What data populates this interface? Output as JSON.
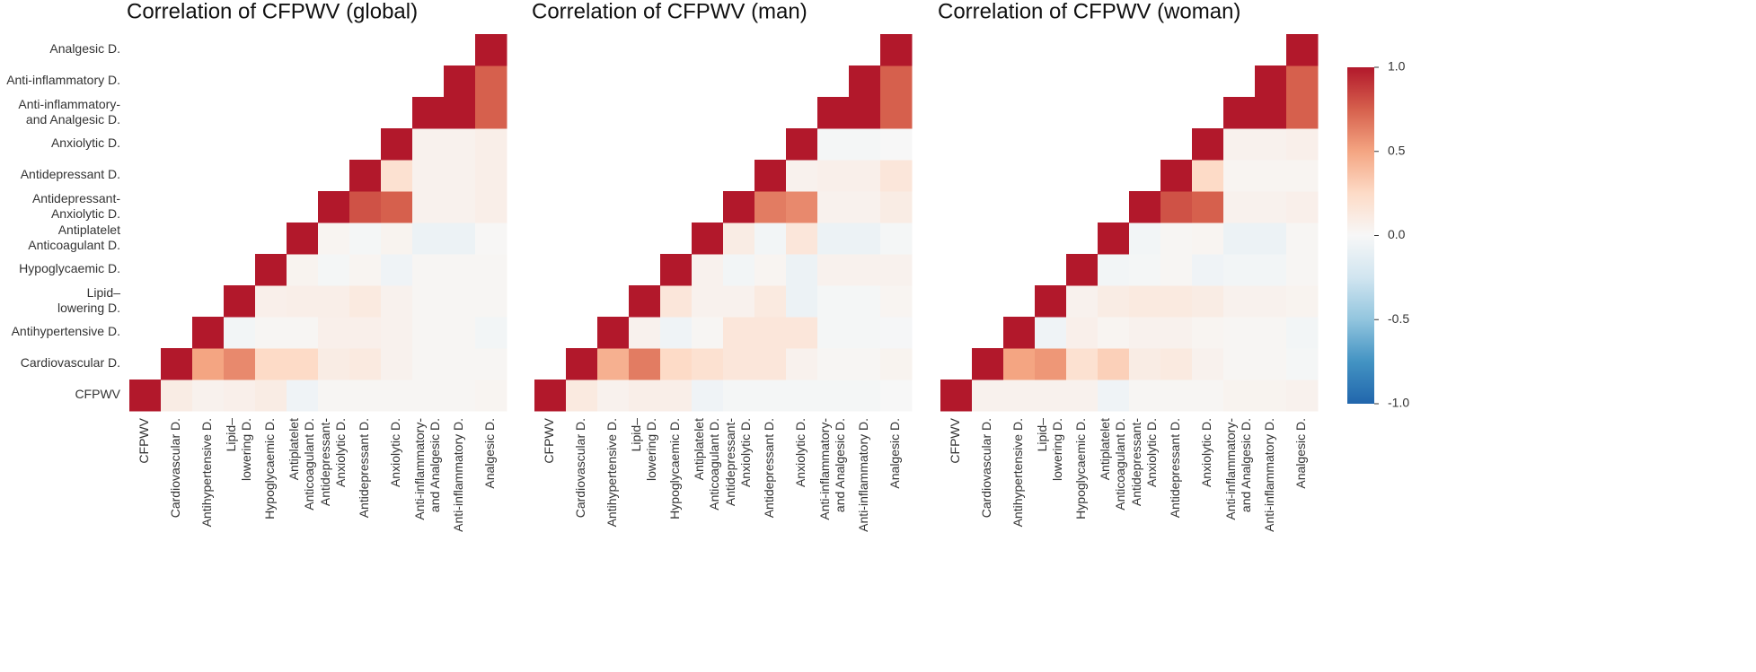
{
  "chart_data": [
    {
      "type": "heatmap",
      "title": "Correlation of CFPWV (global)",
      "categories": [
        "CFPWV",
        "Cardiovascular D.",
        "Antihypertensive D.",
        "Lipid–\nlowering D.",
        "Hypoglycaemic D.",
        "Antiplatelet\nAnticoagulant D.",
        "Antidepressant-\nAnxiolytic D.",
        "Antidepressant D.",
        "Anxiolytic D.",
        "Anti-inflammatory-\nand Analgesic D.",
        "Anti-inflammatory D.",
        "Analgesic D."
      ],
      "colors": [
        "#2166ac",
        "#4393c3",
        "#92c5de",
        "#d1e5f0",
        "#f7f7f7",
        "#fddbc7",
        "#f4a582",
        "#d6604d",
        "#b2182b"
      ],
      "values": [
        [
          1,
          0.1,
          0.05,
          0.07,
          0.1,
          -0.05,
          0.02,
          0.02,
          0.02,
          0.02,
          0.02,
          0.03
        ],
        [
          null,
          1,
          0.5,
          0.6,
          0.25,
          0.25,
          0.1,
          0.12,
          0.05,
          0.02,
          0.02,
          0.02
        ],
        [
          null,
          null,
          1,
          -0.03,
          0.02,
          0.02,
          0.07,
          0.07,
          0.05,
          0.02,
          0.02,
          -0.03
        ],
        [
          null,
          null,
          null,
          1,
          0.07,
          0.08,
          0.08,
          0.12,
          0.05,
          0.02,
          0.02,
          0.02
        ],
        [
          null,
          null,
          null,
          null,
          1,
          0.04,
          -0.02,
          0.03,
          -0.05,
          0.02,
          0.02,
          0.02
        ],
        [
          null,
          null,
          null,
          null,
          null,
          1,
          0.03,
          -0.02,
          0.04,
          -0.07,
          -0.07,
          0.01
        ],
        [
          null,
          null,
          null,
          null,
          null,
          null,
          1,
          0.8,
          0.75,
          0.05,
          0.05,
          0.08
        ],
        [
          null,
          null,
          null,
          null,
          null,
          null,
          null,
          1,
          0.2,
          0.05,
          0.05,
          0.08
        ],
        [
          null,
          null,
          null,
          null,
          null,
          null,
          null,
          null,
          1,
          0.05,
          0.05,
          0.08
        ],
        [
          null,
          null,
          null,
          null,
          null,
          null,
          null,
          null,
          null,
          1,
          1,
          0.75
        ],
        [
          null,
          null,
          null,
          null,
          null,
          null,
          null,
          null,
          null,
          null,
          1,
          0.75
        ],
        [
          null,
          null,
          null,
          null,
          null,
          null,
          null,
          null,
          null,
          null,
          null,
          1
        ]
      ],
      "zlim": [
        -1,
        1
      ]
    },
    {
      "type": "heatmap",
      "title": "Correlation of CFPWV (man)",
      "categories": [
        "CFPWV",
        "Cardiovascular D.",
        "Antihypertensive D.",
        "Lipid–\nlowering D.",
        "Hypoglycaemic D.",
        "Antiplatelet\nAnticoagulant D.",
        "Antidepressant-\nAnxiolytic D.",
        "Antidepressant D.",
        "Anxiolytic D.",
        "Anti-inflammatory-\nand Analgesic D.",
        "Anti-inflammatory D.",
        "Analgesic D."
      ],
      "colors": [
        "#2166ac",
        "#4393c3",
        "#92c5de",
        "#d1e5f0",
        "#f7f7f7",
        "#fddbc7",
        "#f4a582",
        "#d6604d",
        "#b2182b"
      ],
      "values": [
        [
          1,
          0.12,
          0.05,
          0.08,
          0.08,
          -0.05,
          -0.02,
          -0.02,
          -0.02,
          -0.02,
          -0.02,
          0
        ],
        [
          null,
          1,
          0.45,
          0.65,
          0.25,
          0.2,
          0.15,
          0.15,
          0.05,
          0.02,
          0.02,
          0.04
        ],
        [
          null,
          null,
          1,
          0.05,
          -0.05,
          0.02,
          0.15,
          0.15,
          0.15,
          -0.02,
          -0.02,
          -0.01
        ],
        [
          null,
          null,
          null,
          1,
          0.15,
          0.05,
          0.05,
          0.12,
          -0.07,
          -0.02,
          -0.02,
          0.03
        ],
        [
          null,
          null,
          null,
          null,
          1,
          0.05,
          -0.03,
          0.03,
          -0.07,
          0.05,
          0.05,
          0.05
        ],
        [
          null,
          null,
          null,
          null,
          null,
          1,
          0.1,
          -0.03,
          0.15,
          -0.07,
          -0.07,
          -0.02
        ],
        [
          null,
          null,
          null,
          null,
          null,
          null,
          1,
          0.65,
          0.6,
          0.05,
          0.05,
          0.1
        ],
        [
          null,
          null,
          null,
          null,
          null,
          null,
          null,
          1,
          0.05,
          0.07,
          0.07,
          0.15
        ],
        [
          null,
          null,
          null,
          null,
          null,
          null,
          null,
          null,
          1,
          -0.02,
          -0.02,
          0
        ],
        [
          null,
          null,
          null,
          null,
          null,
          null,
          null,
          null,
          null,
          1,
          1,
          0.75
        ],
        [
          null,
          null,
          null,
          null,
          null,
          null,
          null,
          null,
          null,
          null,
          1,
          0.75
        ],
        [
          null,
          null,
          null,
          null,
          null,
          null,
          null,
          null,
          null,
          null,
          null,
          1
        ]
      ],
      "zlim": [
        -1,
        1
      ]
    },
    {
      "type": "heatmap",
      "title": "Correlation of CFPWV (woman)",
      "categories": [
        "CFPWV",
        "Cardiovascular D.",
        "Antihypertensive D.",
        "Lipid–\nlowering D.",
        "Hypoglycaemic D.",
        "Antiplatelet\nAnticoagulant D.",
        "Antidepressant-\nAnxiolytic D.",
        "Antidepressant D.",
        "Anxiolytic D.",
        "Anti-inflammatory-\nand Analgesic D.",
        "Anti-inflammatory D.",
        "Analgesic D."
      ],
      "colors": [
        "#2166ac",
        "#4393c3",
        "#92c5de",
        "#d1e5f0",
        "#f7f7f7",
        "#fddbc7",
        "#f4a582",
        "#d6604d",
        "#b2182b"
      ],
      "values": [
        [
          1,
          0.05,
          0.05,
          0.05,
          0.05,
          -0.05,
          0.02,
          0.02,
          0.02,
          0.04,
          0.04,
          0.05
        ],
        [
          null,
          1,
          0.5,
          0.55,
          0.2,
          0.3,
          0.1,
          0.12,
          0.05,
          0.02,
          0.02,
          -0.02
        ],
        [
          null,
          null,
          1,
          -0.05,
          0.07,
          0.03,
          0.05,
          0.05,
          0.03,
          0.02,
          0.02,
          -0.03
        ],
        [
          null,
          null,
          null,
          1,
          0.05,
          0.1,
          0.12,
          0.12,
          0.1,
          0.05,
          0.05,
          0.04
        ],
        [
          null,
          null,
          null,
          null,
          1,
          -0.03,
          -0.02,
          0.02,
          -0.05,
          -0.03,
          -0.03,
          0.02
        ],
        [
          null,
          null,
          null,
          null,
          null,
          1,
          -0.03,
          0.02,
          0.03,
          -0.07,
          -0.07,
          0.02
        ],
        [
          null,
          null,
          null,
          null,
          null,
          null,
          1,
          0.8,
          0.75,
          0.05,
          0.05,
          0.07
        ],
        [
          null,
          null,
          null,
          null,
          null,
          null,
          null,
          1,
          0.25,
          0.03,
          0.03,
          0.03
        ],
        [
          null,
          null,
          null,
          null,
          null,
          null,
          null,
          null,
          1,
          0.05,
          0.05,
          0.07
        ],
        [
          null,
          null,
          null,
          null,
          null,
          null,
          null,
          null,
          null,
          1,
          1,
          0.75
        ],
        [
          null,
          null,
          null,
          null,
          null,
          null,
          null,
          null,
          null,
          null,
          1,
          0.75
        ],
        [
          null,
          null,
          null,
          null,
          null,
          null,
          null,
          null,
          null,
          null,
          null,
          1
        ]
      ],
      "zlim": [
        -1,
        1
      ],
      "zticks": [
        {
          "value": 1,
          "label": "1.0"
        },
        0.5,
        {
          "value": 0,
          "label": "0.0"
        },
        -0.5,
        {
          "value": -1,
          "label": "-1.0"
        }
      ]
    }
  ]
}
